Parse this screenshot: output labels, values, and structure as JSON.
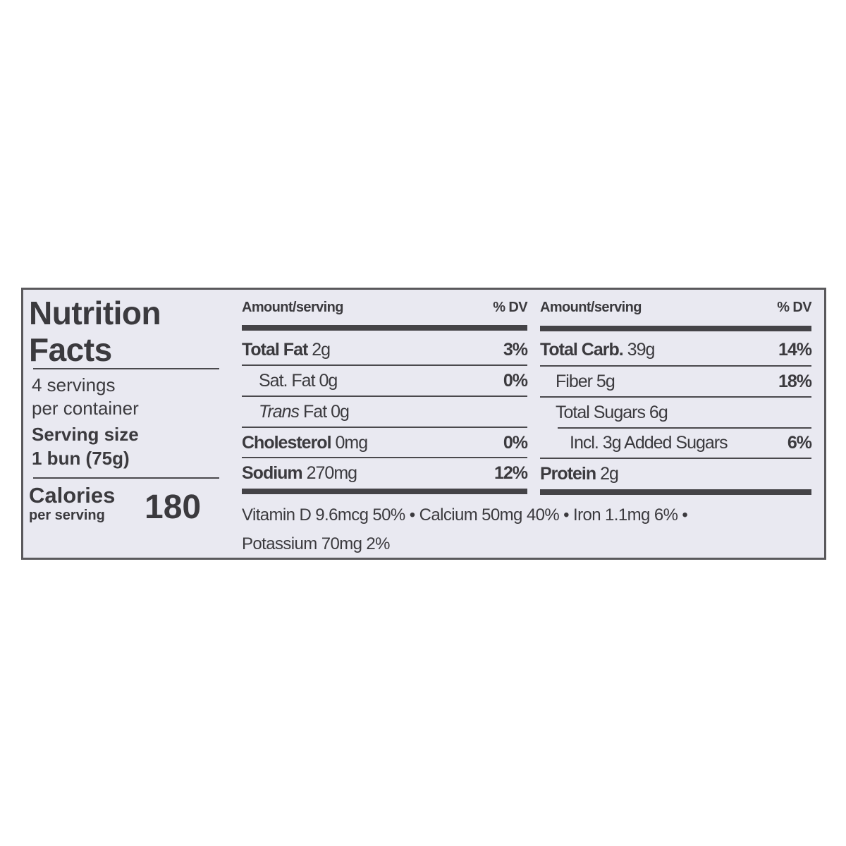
{
  "label": {
    "title_line1": "Nutrition",
    "title_line2": "Facts",
    "servings_line1": "4 servings",
    "servings_line2": "per container",
    "serving_size_label": "Serving size",
    "serving_size_value": "1 bun (75g)",
    "calories_label": "Calories",
    "calories_sub": "per serving",
    "calories_value": "180"
  },
  "left_table": {
    "header_amount": "Amount/serving",
    "header_dv": "% DV",
    "rows": [
      {
        "name": "Total Fat",
        "amount": "2g",
        "dv": "3%",
        "bold": true,
        "italic_prefix": ""
      },
      {
        "name": "Sat. Fat",
        "amount": "0g",
        "dv": "0%",
        "bold": false,
        "italic_prefix": ""
      },
      {
        "name": "Fat",
        "amount": "0g",
        "dv": "",
        "bold": false,
        "italic_prefix": "Trans"
      },
      {
        "name": "Cholesterol",
        "amount": "0mg",
        "dv": "0%",
        "bold": true,
        "italic_prefix": ""
      },
      {
        "name": "Sodium",
        "amount": "270mg",
        "dv": "12%",
        "bold": true,
        "italic_prefix": ""
      }
    ]
  },
  "right_table": {
    "header_amount": "Amount/serving",
    "header_dv": "% DV",
    "rows": [
      {
        "name": "Total Carb.",
        "amount": "39g",
        "dv": "14%",
        "bold": true
      },
      {
        "name": "Fiber",
        "amount": "5g",
        "dv": "18%",
        "bold": false
      },
      {
        "name": "Total Sugars",
        "amount": "6g",
        "dv": "",
        "bold": false
      },
      {
        "name": "Incl. 3g Added Sugars",
        "amount": "",
        "dv": "6%",
        "bold": false
      },
      {
        "name": "Protein",
        "amount": "2g",
        "dv": "",
        "bold": true
      }
    ]
  },
  "vitamins": {
    "line1": "Vitamin D 9.6mcg 50% • Calcium 50mg 40% • Iron 1.1mg 6% •",
    "line2": "Potassium 70mg 2%"
  }
}
